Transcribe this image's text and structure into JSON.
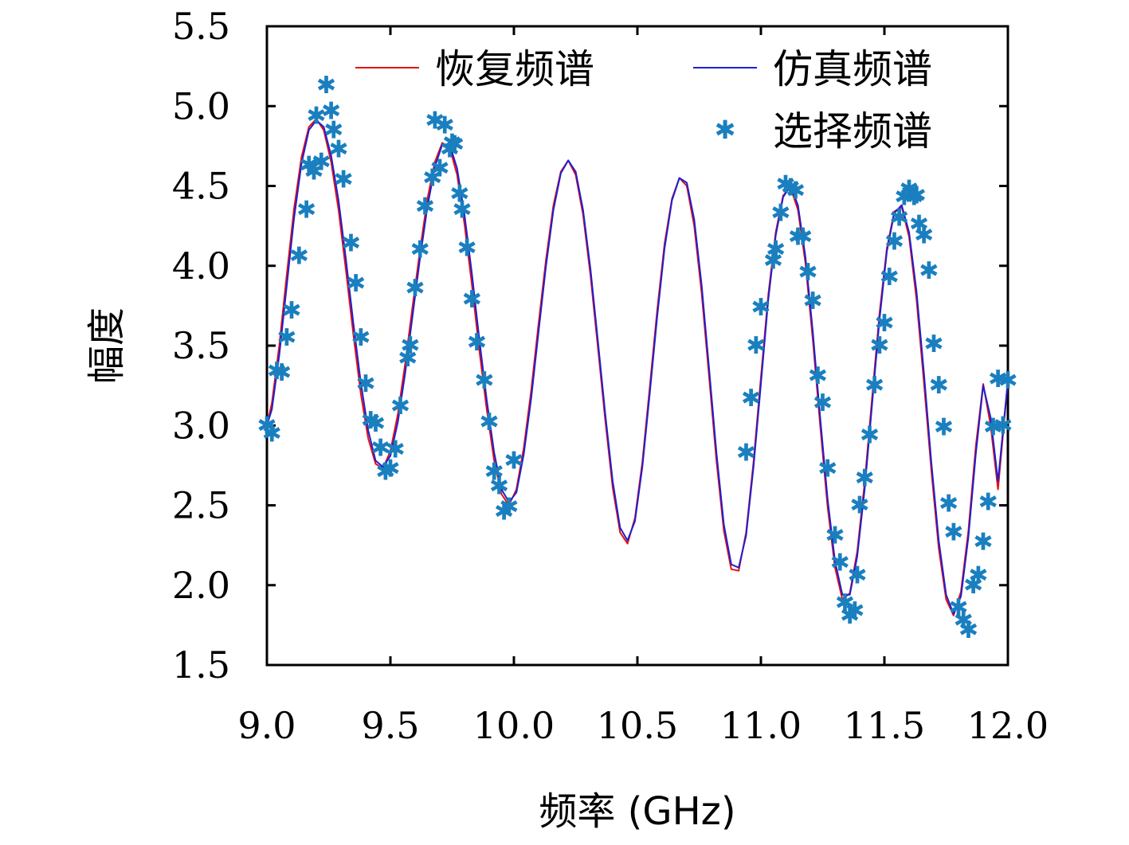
{
  "chart_data": {
    "type": "line",
    "xlabel": "频率 (GHz)",
    "ylabel": "幅度",
    "xlim": [
      9.0,
      12.0
    ],
    "ylim": [
      1.5,
      5.5
    ],
    "xticks": [
      "9.0",
      "9.5",
      "10.0",
      "10.5",
      "11.0",
      "11.5",
      "12.0"
    ],
    "yticks": [
      "1.5",
      "2.0",
      "2.5",
      "3.0",
      "3.5",
      "4.0",
      "4.5",
      "5.0",
      "5.5"
    ],
    "legend_position": "top-right",
    "grid": false,
    "colors": {
      "recovered": "#e8100f",
      "simulated": "#1f1fd1",
      "selected": "#1a7fbf"
    },
    "series": [
      {
        "name": "恢复频谱",
        "kind": "line",
        "x": [
          9.0,
          9.02,
          9.05,
          9.08,
          9.11,
          9.14,
          9.17,
          9.2,
          9.23,
          9.26,
          9.29,
          9.32,
          9.35,
          9.38,
          9.41,
          9.44,
          9.47,
          9.5,
          9.53,
          9.56,
          9.59,
          9.62,
          9.65,
          9.68,
          9.71,
          9.74,
          9.77,
          9.8,
          9.83,
          9.86,
          9.89,
          9.92,
          9.95,
          9.98,
          10.01,
          10.04,
          10.07,
          10.1,
          10.13,
          10.16,
          10.19,
          10.22,
          10.25,
          10.28,
          10.31,
          10.34,
          10.37,
          10.4,
          10.43,
          10.46,
          10.49,
          10.52,
          10.55,
          10.58,
          10.61,
          10.64,
          10.67,
          10.7,
          10.73,
          10.76,
          10.79,
          10.82,
          10.85,
          10.88,
          10.91,
          10.94,
          10.97,
          11.0,
          11.03,
          11.06,
          11.09,
          11.12,
          11.15,
          11.18,
          11.21,
          11.24,
          11.27,
          11.3,
          11.33,
          11.36,
          11.39,
          11.42,
          11.45,
          11.48,
          11.51,
          11.54,
          11.57,
          11.6,
          11.63,
          11.66,
          11.69,
          11.72,
          11.75,
          11.78,
          11.81,
          11.84,
          11.87,
          11.9,
          11.93,
          11.96,
          12.0
        ],
        "y": [
          3.0,
          3.14,
          3.5,
          3.94,
          4.36,
          4.68,
          4.87,
          4.92,
          4.85,
          4.65,
          4.35,
          3.97,
          3.57,
          3.2,
          2.92,
          2.76,
          2.73,
          2.84,
          3.07,
          3.39,
          3.75,
          4.1,
          4.42,
          4.65,
          4.77,
          4.74,
          4.57,
          4.26,
          3.88,
          3.47,
          3.1,
          2.78,
          2.57,
          2.5,
          2.6,
          2.86,
          3.22,
          3.64,
          4.04,
          4.38,
          4.59,
          4.66,
          4.57,
          4.32,
          3.94,
          3.49,
          3.03,
          2.61,
          2.33,
          2.26,
          2.42,
          2.77,
          3.24,
          3.72,
          4.14,
          4.42,
          4.55,
          4.5,
          4.25,
          3.83,
          3.31,
          2.78,
          2.34,
          2.1,
          2.09,
          2.33,
          2.77,
          3.3,
          3.82,
          4.21,
          4.44,
          4.49,
          4.35,
          4.02,
          3.54,
          3.0,
          2.49,
          2.11,
          1.91,
          1.95,
          2.21,
          2.64,
          3.17,
          3.7,
          4.11,
          4.34,
          4.37,
          4.18,
          3.79,
          3.27,
          2.72,
          2.23,
          1.91,
          1.81,
          1.96,
          2.34,
          2.87,
          3.26,
          3.0,
          2.6,
          3.28
        ]
      },
      {
        "name": "仿真频谱",
        "kind": "line",
        "x": [
          9.0,
          9.02,
          9.05,
          9.08,
          9.11,
          9.14,
          9.17,
          9.2,
          9.23,
          9.26,
          9.29,
          9.32,
          9.35,
          9.38,
          9.41,
          9.44,
          9.47,
          9.5,
          9.53,
          9.56,
          9.59,
          9.62,
          9.65,
          9.68,
          9.71,
          9.74,
          9.77,
          9.8,
          9.83,
          9.86,
          9.89,
          9.92,
          9.95,
          9.98,
          10.01,
          10.04,
          10.07,
          10.1,
          10.13,
          10.16,
          10.19,
          10.22,
          10.25,
          10.28,
          10.31,
          10.34,
          10.37,
          10.4,
          10.43,
          10.46,
          10.49,
          10.52,
          10.55,
          10.58,
          10.61,
          10.64,
          10.67,
          10.7,
          10.73,
          10.76,
          10.79,
          10.82,
          10.85,
          10.88,
          10.91,
          10.94,
          10.97,
          11.0,
          11.03,
          11.06,
          11.09,
          11.12,
          11.15,
          11.18,
          11.21,
          11.24,
          11.27,
          11.3,
          11.33,
          11.36,
          11.39,
          11.42,
          11.45,
          11.48,
          11.51,
          11.54,
          11.57,
          11.6,
          11.63,
          11.66,
          11.69,
          11.72,
          11.75,
          11.78,
          11.81,
          11.84,
          11.87,
          11.9,
          11.93,
          11.96,
          12.0
        ],
        "y": [
          3.0,
          3.1,
          3.44,
          3.87,
          4.3,
          4.64,
          4.85,
          4.91,
          4.87,
          4.69,
          4.41,
          4.04,
          3.64,
          3.27,
          2.97,
          2.78,
          2.74,
          2.81,
          3.02,
          3.33,
          3.69,
          4.05,
          4.37,
          4.62,
          4.76,
          4.76,
          4.61,
          4.32,
          3.95,
          3.54,
          3.16,
          2.83,
          2.6,
          2.52,
          2.58,
          2.82,
          3.17,
          3.59,
          4.0,
          4.35,
          4.58,
          4.66,
          4.59,
          4.35,
          3.98,
          3.53,
          3.07,
          2.65,
          2.36,
          2.28,
          2.4,
          2.74,
          3.2,
          3.68,
          4.11,
          4.41,
          4.55,
          4.52,
          4.29,
          3.88,
          3.36,
          2.83,
          2.38,
          2.13,
          2.11,
          2.31,
          2.74,
          3.26,
          3.79,
          4.19,
          4.43,
          4.5,
          4.38,
          4.06,
          3.59,
          3.05,
          2.54,
          2.15,
          1.94,
          1.94,
          2.18,
          2.6,
          3.13,
          3.66,
          4.09,
          4.33,
          4.38,
          4.21,
          3.84,
          3.33,
          2.77,
          2.28,
          1.94,
          1.82,
          1.93,
          2.3,
          2.82,
          3.25,
          3.05,
          2.65,
          3.28
        ]
      },
      {
        "name": "选择频谱",
        "kind": "scatter",
        "x": [
          9.0,
          9.02,
          9.04,
          9.06,
          9.08,
          9.1,
          9.13,
          9.16,
          9.17,
          9.19,
          9.2,
          9.22,
          9.24,
          9.26,
          9.27,
          9.29,
          9.31,
          9.34,
          9.36,
          9.38,
          9.4,
          9.42,
          9.44,
          9.46,
          9.48,
          9.5,
          9.52,
          9.54,
          9.57,
          9.58,
          9.6,
          9.62,
          9.64,
          9.67,
          9.68,
          9.7,
          9.72,
          9.74,
          9.75,
          9.76,
          9.78,
          9.79,
          9.81,
          9.83,
          9.85,
          9.88,
          9.9,
          9.92,
          9.94,
          9.96,
          9.98,
          10.0,
          10.94,
          10.96,
          10.98,
          11.0,
          11.05,
          11.06,
          11.08,
          11.1,
          11.12,
          11.14,
          11.15,
          11.17,
          11.19,
          11.21,
          11.23,
          11.25,
          11.27,
          11.3,
          11.32,
          11.34,
          11.36,
          11.38,
          11.39,
          11.4,
          11.42,
          11.44,
          11.46,
          11.48,
          11.5,
          11.52,
          11.54,
          11.56,
          11.58,
          11.6,
          11.62,
          11.63,
          11.64,
          11.66,
          11.68,
          11.7,
          11.72,
          11.74,
          11.76,
          11.78,
          11.8,
          11.82,
          11.84,
          11.86,
          11.88,
          11.9,
          11.92,
          11.94,
          11.96,
          11.98,
          12.0
        ],
        "y": [
          3.0,
          2.95,
          3.34,
          3.33,
          3.55,
          3.72,
          4.06,
          4.35,
          4.63,
          4.59,
          4.94,
          4.65,
          5.13,
          4.97,
          4.85,
          4.73,
          4.54,
          4.14,
          3.89,
          3.55,
          3.26,
          3.03,
          3.01,
          2.86,
          2.71,
          2.73,
          2.85,
          3.12,
          3.42,
          3.5,
          3.86,
          4.1,
          4.37,
          4.55,
          4.91,
          4.61,
          4.88,
          4.73,
          4.77,
          4.76,
          4.45,
          4.35,
          4.11,
          3.79,
          3.52,
          3.28,
          3.02,
          2.71,
          2.62,
          2.46,
          2.49,
          2.78,
          2.83,
          3.17,
          3.5,
          3.74,
          4.03,
          4.1,
          4.33,
          4.51,
          4.49,
          4.47,
          4.18,
          4.18,
          3.96,
          3.78,
          3.31,
          3.14,
          2.73,
          2.31,
          2.14,
          1.89,
          1.81,
          1.84,
          2.06,
          2.5,
          2.67,
          2.94,
          3.25,
          3.5,
          3.64,
          3.93,
          4.15,
          4.3,
          4.43,
          4.48,
          4.43,
          4.44,
          4.26,
          4.19,
          3.97,
          3.51,
          3.25,
          2.99,
          2.51,
          2.33,
          1.86,
          1.78,
          1.72,
          2.0,
          2.06,
          2.27,
          2.52,
          2.99,
          3.29,
          3.0,
          3.28
        ]
      }
    ]
  }
}
